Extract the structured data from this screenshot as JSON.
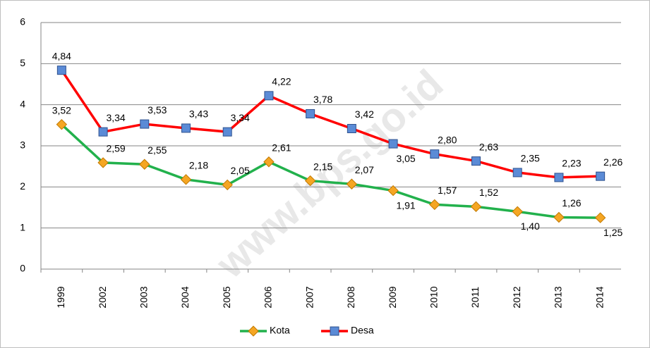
{
  "chart_data": {
    "type": "line",
    "categories": [
      "1999",
      "2002",
      "2003",
      "2004",
      "2005",
      "2006",
      "2007",
      "2008",
      "2009",
      "2010",
      "2011",
      "2012",
      "2013",
      "2014"
    ],
    "series": [
      {
        "name": "Kota",
        "color": "#22b14c",
        "marker_color": "#f5a623",
        "values": [
          3.52,
          2.59,
          2.55,
          2.18,
          2.05,
          2.61,
          2.15,
          2.07,
          1.91,
          1.57,
          1.52,
          1.4,
          1.26,
          1.25
        ],
        "value_labels": [
          "3,52",
          "2,59",
          "2,55",
          "2,18",
          "2,05",
          "2,61",
          "2,15",
          "2,07",
          "1,91",
          "1,57",
          "1,52",
          "1,40",
          "1,26",
          "1,25"
        ]
      },
      {
        "name": "Desa",
        "color": "#ff0000",
        "marker_color": "#5b8bd6",
        "values": [
          4.84,
          3.34,
          3.53,
          3.43,
          3.34,
          4.22,
          3.78,
          3.42,
          3.05,
          2.8,
          2.63,
          2.35,
          2.23,
          2.26
        ],
        "value_labels": [
          "4,84",
          "3,34",
          "3,53",
          "3,43",
          "3,34",
          "4,22",
          "3,78",
          "3,42",
          "3,05",
          "2,80",
          "2,63",
          "2,35",
          "2,23",
          "2,26"
        ]
      }
    ],
    "ylim": [
      0,
      6
    ],
    "yticks": [
      0,
      1,
      2,
      3,
      4,
      5,
      6
    ],
    "grid": true,
    "legend": "bottom",
    "watermark": "www.bps.go.id"
  }
}
